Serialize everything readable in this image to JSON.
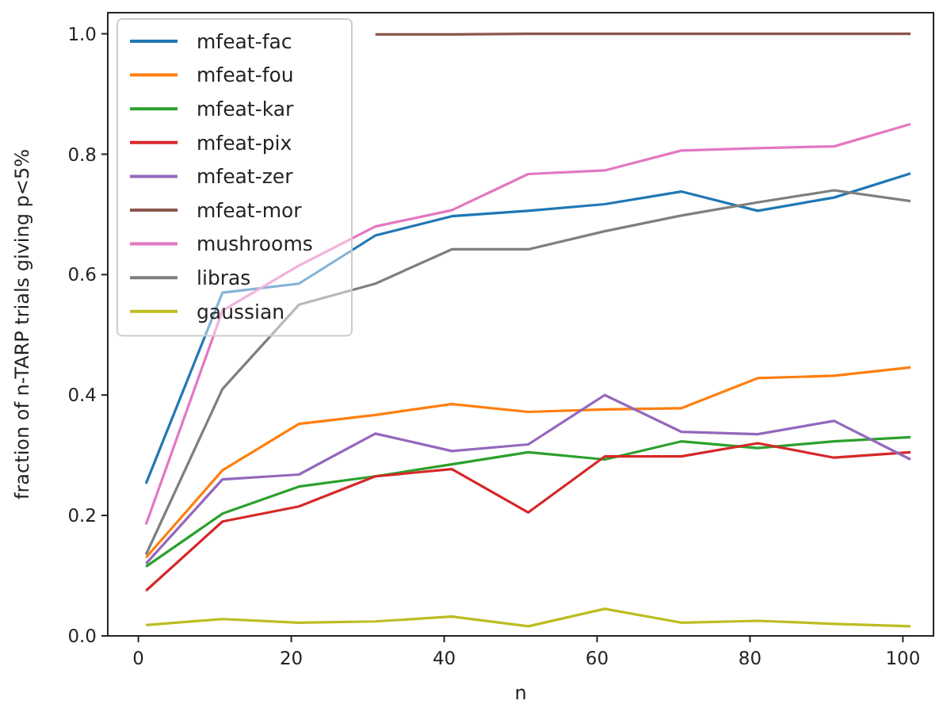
{
  "chart_data": {
    "type": "line",
    "xlabel": "n",
    "ylabel": "fraction of n-TARP trials giving p<5%",
    "x": [
      1,
      11,
      21,
      31,
      41,
      51,
      61,
      71,
      81,
      91,
      101
    ],
    "xlim": [
      -4,
      104
    ],
    "xticks": [
      0,
      20,
      40,
      60,
      80,
      100
    ],
    "ylim": [
      0,
      1.035
    ],
    "yticks": [
      {
        "value": 0,
        "label": "0.0"
      },
      {
        "value": 0.2,
        "label": "0.2"
      },
      {
        "value": 0.4,
        "label": "0.4"
      },
      {
        "value": 0.6,
        "label": "0.6"
      },
      {
        "value": 0.8,
        "label": "0.8"
      },
      {
        "value": 1,
        "label": "1.0"
      }
    ],
    "grid": false,
    "legend": "top left",
    "marker": "none",
    "line_style": "solid",
    "series": [
      {
        "name": "mfeat-fac",
        "color": "#1f77b4",
        "values": [
          0.253,
          0.57,
          0.585,
          0.665,
          0.697,
          0.706,
          0.717,
          0.738,
          0.706,
          0.728,
          0.768
        ]
      },
      {
        "name": "mfeat-fou",
        "color": "#ff7f0e",
        "values": [
          0.13,
          0.275,
          0.352,
          0.367,
          0.385,
          0.372,
          0.376,
          0.378,
          0.428,
          0.432,
          0.446
        ]
      },
      {
        "name": "mfeat-kar",
        "color": "#2ca02c",
        "values": [
          0.115,
          0.203,
          0.248,
          0.265,
          0.285,
          0.305,
          0.293,
          0.323,
          0.312,
          0.323,
          0.33
        ]
      },
      {
        "name": "mfeat-pix",
        "color": "#d62728",
        "values": [
          0.075,
          0.19,
          0.215,
          0.265,
          0.277,
          0.205,
          0.298,
          0.298,
          0.32,
          0.296,
          0.305
        ]
      },
      {
        "name": "mfeat-zer",
        "color": "#9467bd",
        "values": [
          0.12,
          0.26,
          0.268,
          0.336,
          0.307,
          0.318,
          0.4,
          0.339,
          0.335,
          0.357,
          0.293
        ]
      },
      {
        "name": "mfeat-mor",
        "color": "#8c564b",
        "values": [
          null,
          null,
          null,
          0.999,
          0.999,
          1.0,
          1.0,
          1.0,
          1.0,
          1.0,
          1.0
        ]
      },
      {
        "name": "mushrooms",
        "color": "#e377c2",
        "values": [
          0.185,
          0.54,
          0.615,
          0.68,
          0.707,
          0.767,
          0.773,
          0.806,
          0.81,
          0.813,
          0.85
        ]
      },
      {
        "name": "libras",
        "color": "#7f7f7f",
        "values": [
          0.135,
          0.41,
          0.55,
          0.585,
          0.642,
          0.642,
          0.672,
          0.698,
          0.72,
          0.74,
          0.722
        ]
      },
      {
        "name": "gaussian",
        "color": "#bcbd22",
        "values": [
          0.018,
          0.028,
          0.022,
          0.024,
          0.032,
          0.016,
          0.045,
          0.022,
          0.025,
          0.02,
          0.016
        ]
      }
    ]
  }
}
